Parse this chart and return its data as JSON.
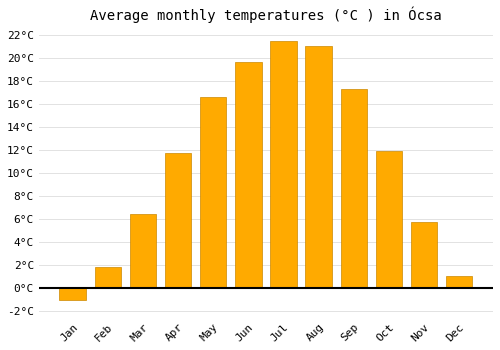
{
  "title": "Average monthly temperatures (°C ) in Ócsa",
  "months": [
    "Jan",
    "Feb",
    "Mar",
    "Apr",
    "May",
    "Jun",
    "Jul",
    "Aug",
    "Sep",
    "Oct",
    "Nov",
    "Dec"
  ],
  "values": [
    -1.0,
    1.8,
    6.4,
    11.7,
    16.6,
    19.6,
    21.4,
    21.0,
    17.3,
    11.9,
    5.7,
    1.0
  ],
  "bar_color": "#FFAA00",
  "bar_edge_color": "#CC8800",
  "background_color": "#FFFFFF",
  "plot_bg_color": "#FFFFFF",
  "grid_color": "#DDDDDD",
  "ylim": [
    -2.5,
    22.5
  ],
  "yticks": [
    -2,
    0,
    2,
    4,
    6,
    8,
    10,
    12,
    14,
    16,
    18,
    20,
    22
  ],
  "title_fontsize": 10,
  "tick_fontsize": 8,
  "font_family": "monospace"
}
